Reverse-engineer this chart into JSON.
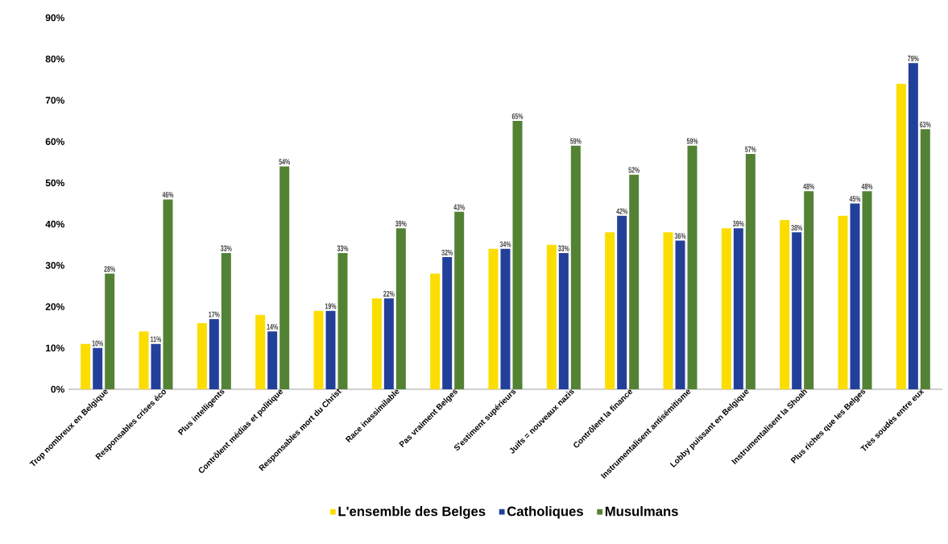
{
  "chart_data": {
    "type": "bar",
    "categories": [
      "Trop nombreux en Belgique",
      "Responsables crises éco",
      "Plus intelligents",
      "Contrôlent médias et politique",
      "Responsables mort du Christ",
      "Race inassimilable",
      "Pas vraiment Belges",
      "S'estiment supérieurs",
      "Juifs = nouveaux nazis",
      "Contrôlent la finance",
      "Instrumentalisent antisémitisme",
      "Lobby puissant en Belgique",
      "Instrumentalisent la Shoah",
      "Plus riches que les Belges",
      "Très soudés entre eux"
    ],
    "series": [
      {
        "name": "L'ensemble des Belges",
        "color": "#fbdd00",
        "values": [
          11,
          14,
          16,
          18,
          19,
          22,
          28,
          34,
          35,
          38,
          38,
          39,
          41,
          42,
          74
        ]
      },
      {
        "name": "Catholiques",
        "color": "#22409a",
        "values": [
          10,
          11,
          17,
          14,
          19,
          22,
          32,
          34,
          33,
          42,
          36,
          39,
          38,
          45,
          79
        ],
        "value_labels": [
          "10%",
          "11%",
          "17%",
          "14%",
          "19%",
          "22%",
          "32%",
          "34%",
          "33%",
          "42%",
          "36%",
          "39%",
          "38%",
          "45%",
          "79%"
        ]
      },
      {
        "name": "Musulmans",
        "color": "#548235",
        "values": [
          28,
          46,
          33,
          54,
          33,
          39,
          43,
          65,
          59,
          52,
          59,
          57,
          48,
          48,
          63
        ],
        "value_labels": [
          "28%",
          "46%",
          "33%",
          "54%",
          "33%",
          "39%",
          "43%",
          "65%",
          "59%",
          "52%",
          "59%",
          "57%",
          "48%",
          "48%",
          "63%"
        ]
      }
    ],
    "ylim": [
      0,
      90
    ],
    "yticks": [
      {
        "value": 0,
        "label": "0%"
      },
      {
        "value": 10,
        "label": "10%"
      },
      {
        "value": 20,
        "label": "20%"
      },
      {
        "value": 30,
        "label": "30%"
      },
      {
        "value": 40,
        "label": "40%"
      },
      {
        "value": 50,
        "label": "50%"
      },
      {
        "value": 60,
        "label": "60%"
      },
      {
        "value": 70,
        "label": "70%"
      },
      {
        "value": 80,
        "label": "80%"
      },
      {
        "value": 90,
        "label": "90%"
      }
    ],
    "grid": false,
    "legend": "bottom"
  }
}
